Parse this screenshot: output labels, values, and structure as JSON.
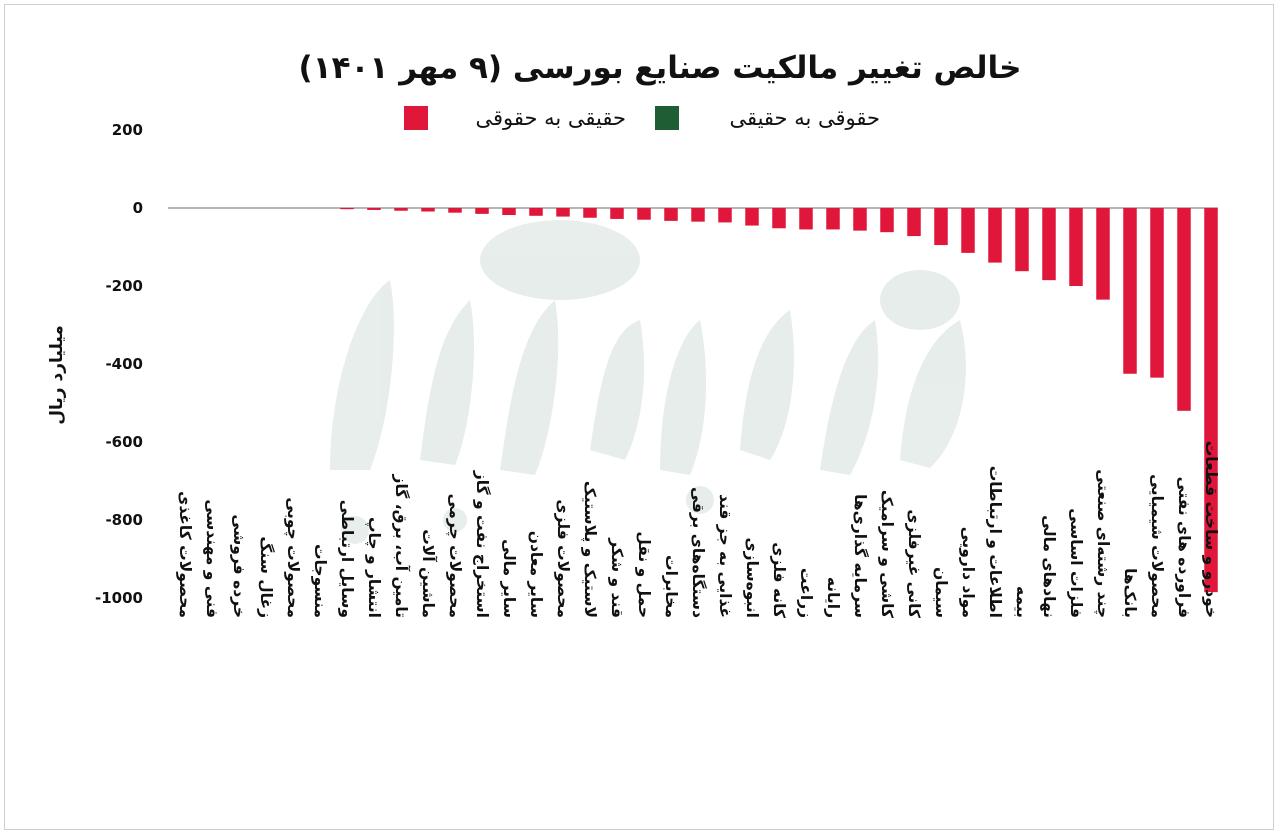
{
  "colors": {
    "bar": "#e0163a",
    "legend_green": "#1f5e34",
    "legend_red": "#e0163a",
    "zero_line": "#8a8a8a"
  },
  "chart_data": {
    "type": "bar",
    "title": "خالص تغییر مالکیت صنایع بورسی (۹ مهر ۱۴۰۱)",
    "ylabel": "میلیارد ریال",
    "ylim": [
      -1000,
      200
    ],
    "yticks": [
      200,
      0,
      -200,
      -400,
      -600,
      -800,
      -1000
    ],
    "ytick_labels": [
      "200",
      "0",
      "-200",
      "-400",
      "-600",
      "-800",
      "-1000"
    ],
    "legend": [
      {
        "label": "حقوقی به حقیقی",
        "color": "#1f5e34"
      },
      {
        "label": "حقیقی به حقوقی",
        "color": "#e0163a"
      }
    ],
    "categories": [
      "محصولات کاغذی",
      "فنی و مهندسی",
      "خرده فروشی",
      "زغال سنگ",
      "محصولات چوبی",
      "منسوجات",
      "وسایل ارتباطی",
      "انتشار و چاپ",
      "تامین آب، برق، گاز",
      "ماشین آلات",
      "محصولات چرمی",
      "استخراج نفت و گاز",
      "سایر مالی",
      "سایر معادن",
      "محصولات فلزی",
      "لاستیک و پلاستیک",
      "قند و شکر",
      "حمل و نقل",
      "مخابرات",
      "دستگاه‌های برقی",
      "غذایی به جز قند",
      "انبوه‌سازی",
      "کانه فلزی",
      "زراعت",
      "رایانه",
      "سرمایه گذاری‌ها",
      "کاشی و سرامیک",
      "کانی غیرفلزی",
      "سیمان",
      "مواد دارویی",
      "اطلاعات و ارتباطات",
      "بیمه",
      "نهادهای مالی",
      "فلزات اساسی",
      "چند رشته‌ای صنعتی",
      "بانک‌ها",
      "محصولات شیمیایی",
      "فراورده های نفتی",
      "خودرو و ساخت قطعات"
    ],
    "values": [
      0,
      0,
      0,
      0,
      0,
      0,
      -3,
      -5,
      -7,
      -9,
      -12,
      -15,
      -18,
      -20,
      -22,
      -25,
      -28,
      -30,
      -33,
      -35,
      -37,
      -45,
      -52,
      -55,
      -55,
      -58,
      -62,
      -72,
      -95,
      -115,
      -140,
      -162,
      -185,
      -200,
      -235,
      -425,
      -435,
      -520,
      -985
    ]
  }
}
